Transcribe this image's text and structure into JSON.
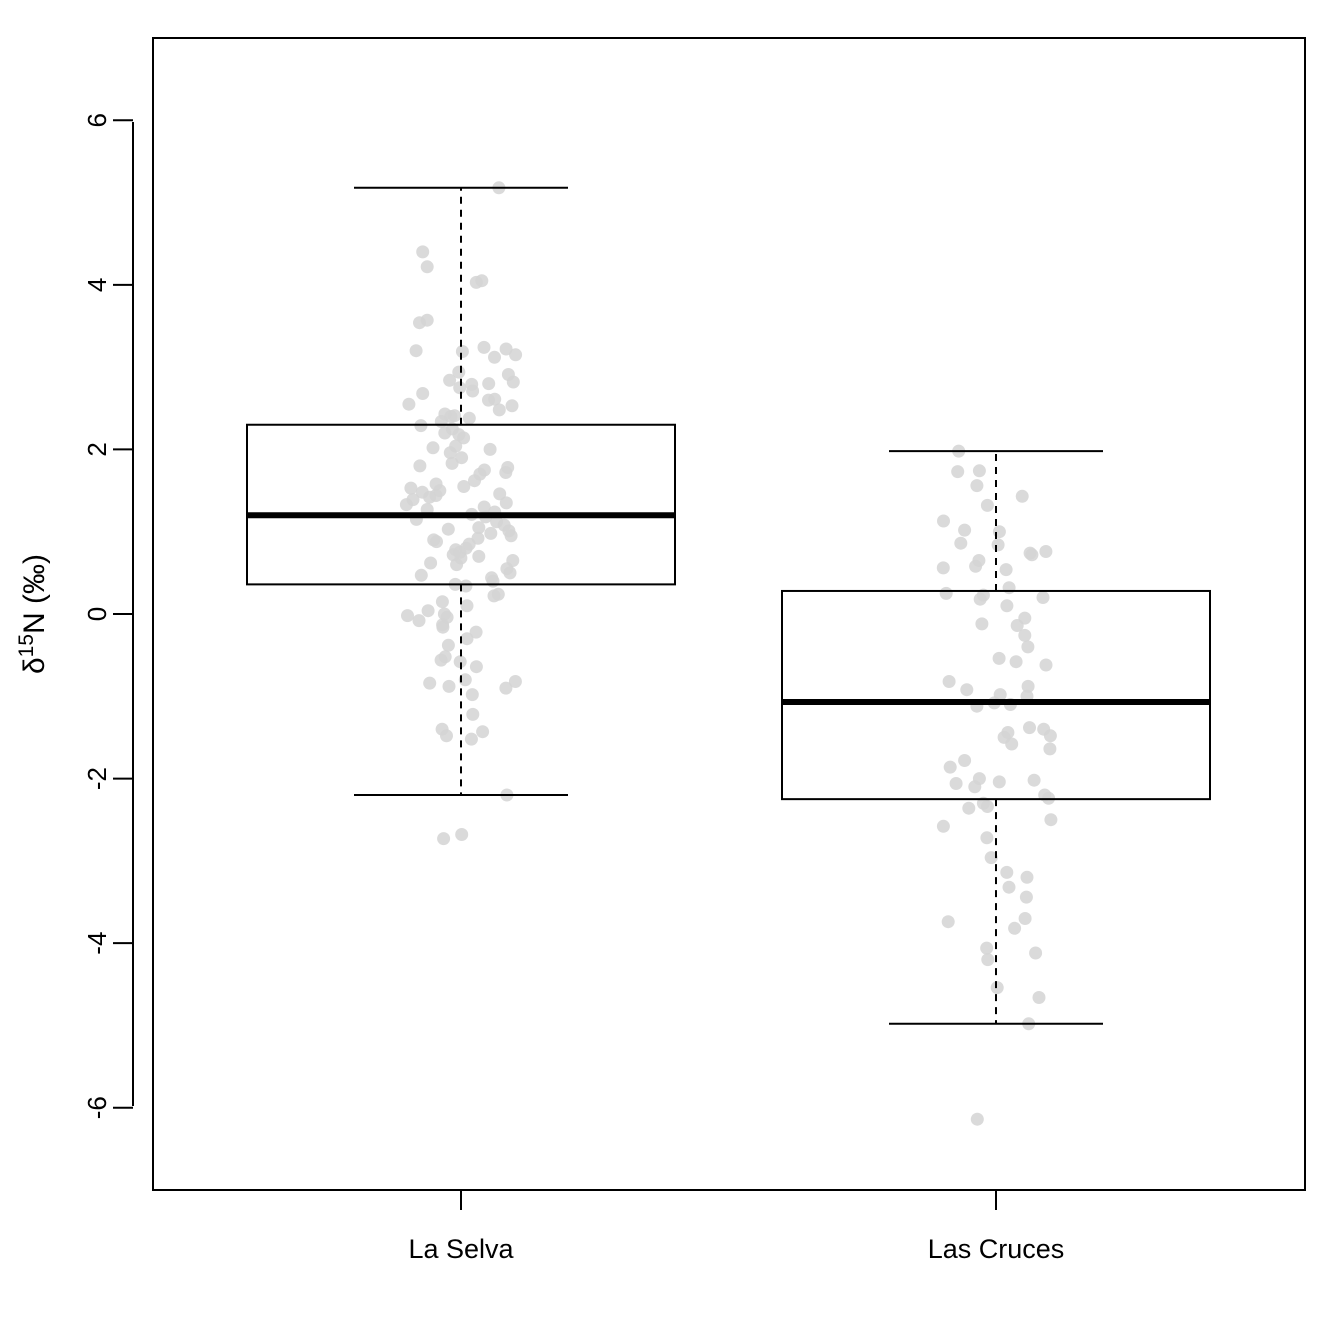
{
  "chart_data": {
    "type": "boxplot",
    "title": "",
    "xlabel": "",
    "ylabel": {
      "prefix": "δ",
      "superscript": "15",
      "suffix": "N (‰)"
    },
    "ylim": [
      -7,
      7
    ],
    "yticks": [
      -6,
      -4,
      -2,
      0,
      2,
      4,
      6
    ],
    "ytick_labels": [
      "-6",
      "-4",
      "-2",
      "0",
      "2",
      "4",
      "6"
    ],
    "grid": false,
    "legend": "none",
    "colors": {
      "box": "#000000",
      "median": "#000000",
      "points": "#d3d3d3",
      "background": "#ffffff"
    },
    "categories": [
      "La Selva",
      "Las Cruces"
    ],
    "boxes": [
      {
        "category": "La Selva",
        "whisker_low": -2.2,
        "q1": 0.36,
        "median": 1.2,
        "q3": 2.3,
        "whisker_high": 5.18,
        "points": [
          5.18,
          4.4,
          4.22,
          4.05,
          4.03,
          3.57,
          3.54,
          3.24,
          3.22,
          3.2,
          3.19,
          3.15,
          3.12,
          2.94,
          2.91,
          2.84,
          2.82,
          2.8,
          2.79,
          2.75,
          2.71,
          2.68,
          2.61,
          2.6,
          2.55,
          2.53,
          2.48,
          2.43,
          2.41,
          2.4,
          2.38,
          2.34,
          2.29,
          2.25,
          2.2,
          2.18,
          2.14,
          2.04,
          2.02,
          2.0,
          1.96,
          1.9,
          1.83,
          1.8,
          1.78,
          1.75,
          1.72,
          1.7,
          1.62,
          1.58,
          1.55,
          1.53,
          1.5,
          1.48,
          1.46,
          1.44,
          1.42,
          1.39,
          1.35,
          1.33,
          1.3,
          1.27,
          1.24,
          1.21,
          1.18,
          1.15,
          1.12,
          1.08,
          1.05,
          1.03,
          1.01,
          0.98,
          0.95,
          0.92,
          0.9,
          0.88,
          0.85,
          0.8,
          0.78,
          0.75,
          0.72,
          0.7,
          0.68,
          0.65,
          0.62,
          0.6,
          0.55,
          0.5,
          0.47,
          0.44,
          0.4,
          0.36,
          0.34,
          0.24,
          0.22,
          0.15,
          0.1,
          0.04,
          0.0,
          -0.02,
          -0.04,
          -0.08,
          -0.13,
          -0.16,
          -0.22,
          -0.3,
          -0.38,
          -0.52,
          -0.56,
          -0.58,
          -0.64,
          -0.8,
          -0.82,
          -0.84,
          -0.88,
          -0.9,
          -0.98,
          -1.22,
          -1.4,
          -1.43,
          -1.48,
          -1.52,
          -2.2,
          -2.68,
          -2.73
        ]
      },
      {
        "category": "Las Cruces",
        "whisker_low": -4.98,
        "q1": -2.25,
        "median": -1.07,
        "q3": 0.28,
        "whisker_high": 1.98,
        "points": [
          1.98,
          1.74,
          1.73,
          1.56,
          1.43,
          1.32,
          1.13,
          1.02,
          1.0,
          0.86,
          0.84,
          0.76,
          0.74,
          0.72,
          0.65,
          0.58,
          0.56,
          0.54,
          0.32,
          0.25,
          0.23,
          0.2,
          0.18,
          0.1,
          -0.05,
          -0.12,
          -0.14,
          -0.26,
          -0.4,
          -0.54,
          -0.58,
          -0.62,
          -0.82,
          -0.88,
          -0.92,
          -0.98,
          -1.0,
          -1.08,
          -1.1,
          -1.12,
          -1.38,
          -1.4,
          -1.44,
          -1.48,
          -1.5,
          -1.58,
          -1.64,
          -1.78,
          -1.86,
          -2.0,
          -2.02,
          -2.04,
          -2.06,
          -2.1,
          -2.2,
          -2.24,
          -2.3,
          -2.34,
          -2.36,
          -2.5,
          -2.58,
          -2.72,
          -2.96,
          -3.14,
          -3.2,
          -3.32,
          -3.44,
          -3.7,
          -3.74,
          -3.82,
          -4.06,
          -4.12,
          -4.2,
          -4.54,
          -4.66,
          -4.98,
          -6.14
        ]
      }
    ]
  }
}
